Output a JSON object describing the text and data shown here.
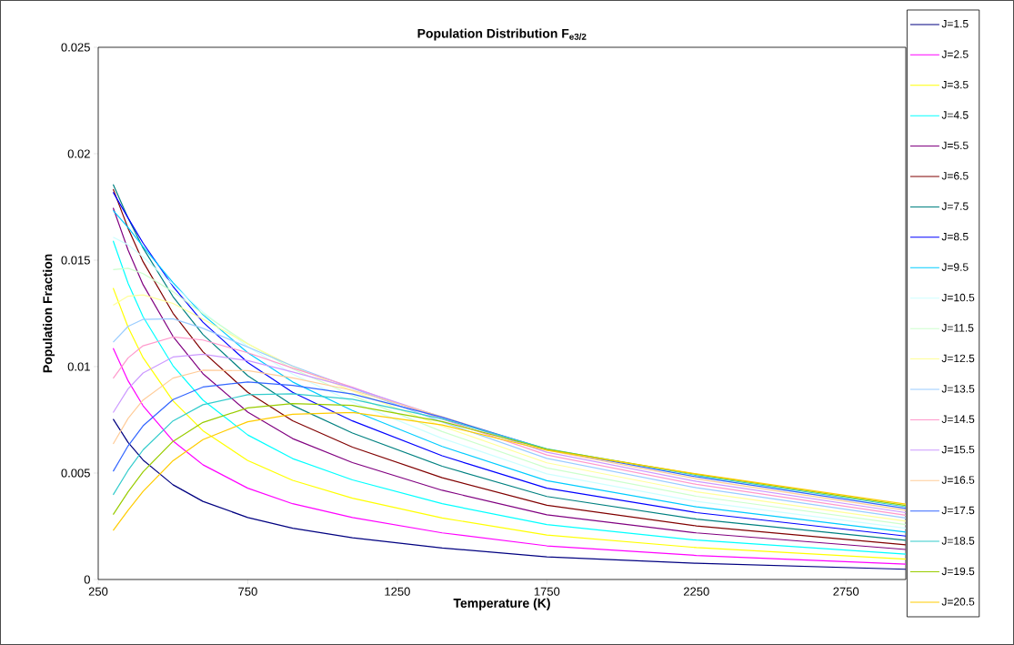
{
  "chart_data": {
    "type": "line",
    "title": "Population Distribution F$_{e3/2}$",
    "xlabel": "Temperature (K)",
    "ylabel": "Population Fraction",
    "x": [
      300,
      350,
      400,
      500,
      600,
      750,
      900,
      1100,
      1400,
      1750,
      2250,
      2950
    ],
    "xlim": [
      250,
      2950
    ],
    "xticks": [
      250,
      750,
      1250,
      1750,
      2250,
      2750
    ],
    "ylim": [
      0,
      0.025
    ],
    "yticks": [
      0,
      0.005,
      0.01,
      0.015,
      0.02,
      0.025
    ],
    "grid": false,
    "legend": "right",
    "line_style": "solid",
    "series": [
      {
        "name": "J=1.5",
        "color": "#000080",
        "values": [
          0.00754,
          0.00644,
          0.00561,
          0.00445,
          0.00367,
          0.00291,
          0.00241,
          0.00196,
          0.00148,
          0.00106,
          0.00076,
          0.00048
        ]
      },
      {
        "name": "J=2.5",
        "color": "#ff00ff",
        "values": [
          0.01087,
          0.00933,
          0.00816,
          0.00651,
          0.00539,
          0.00429,
          0.00356,
          0.00291,
          0.00219,
          0.00158,
          0.00113,
          0.00072
        ]
      },
      {
        "name": "J=3.5",
        "color": "#ffff00",
        "values": [
          0.01369,
          0.01185,
          0.01042,
          0.00839,
          0.00699,
          0.00559,
          0.00466,
          0.00382,
          0.00289,
          0.00209,
          0.0015,
          0.00096
        ]
      },
      {
        "name": "J=4.5",
        "color": "#00ffff",
        "values": [
          0.01591,
          0.01391,
          0.01234,
          0.01004,
          0.00843,
          0.00679,
          0.00568,
          0.00468,
          0.00356,
          0.00258,
          0.00185,
          0.00119
        ]
      },
      {
        "name": "J=5.5",
        "color": "#800080",
        "values": [
          0.01746,
          0.01547,
          0.01385,
          0.01142,
          0.00967,
          0.00786,
          0.00662,
          0.00549,
          0.00419,
          0.00304,
          0.00219,
          0.00141
        ]
      },
      {
        "name": "J=6.5",
        "color": "#800000",
        "values": [
          0.01834,
          0.01649,
          0.01493,
          0.01251,
          0.0107,
          0.00879,
          0.00746,
          0.00622,
          0.00478,
          0.00349,
          0.00252,
          0.00163
        ]
      },
      {
        "name": "J=7.5",
        "color": "#008080",
        "values": [
          0.01856,
          0.01698,
          0.01557,
          0.01329,
          0.01151,
          0.00957,
          0.00818,
          0.00688,
          0.00532,
          0.0039,
          0.00284,
          0.00184
        ]
      },
      {
        "name": "J=8.5",
        "color": "#0000ff",
        "values": [
          0.01819,
          0.01698,
          0.0158,
          0.01377,
          0.01209,
          0.01019,
          0.00879,
          0.00745,
          0.00581,
          0.00429,
          0.00314,
          0.00204
        ]
      },
      {
        "name": "J=9.5",
        "color": "#00ccff",
        "values": [
          0.01733,
          0.01653,
          0.01564,
          0.01395,
          0.01244,
          0.01065,
          0.00928,
          0.00794,
          0.00625,
          0.00464,
          0.00341,
          0.00223
        ]
      },
      {
        "name": "J=10.5",
        "color": "#ccffff",
        "values": [
          0.01608,
          0.01572,
          0.01515,
          0.01385,
          0.01257,
          0.01094,
          0.00965,
          0.00834,
          0.00663,
          0.00496,
          0.00367,
          0.00241
        ]
      },
      {
        "name": "J=11.5",
        "color": "#ccffcc",
        "values": [
          0.01456,
          0.01462,
          0.01437,
          0.01352,
          0.01249,
          0.01108,
          0.00989,
          0.00864,
          0.00695,
          0.00524,
          0.00391,
          0.00258
        ]
      },
      {
        "name": "J=12.5",
        "color": "#ffff99",
        "values": [
          0.01288,
          0.01331,
          0.01337,
          0.01297,
          0.01223,
          0.01107,
          0.01001,
          0.00886,
          0.0072,
          0.00548,
          0.00412,
          0.00274
        ]
      },
      {
        "name": "J=13.5",
        "color": "#99ccff",
        "values": [
          0.01115,
          0.01189,
          0.01222,
          0.01225,
          0.0118,
          0.01092,
          0.01003,
          0.00899,
          0.0074,
          0.00569,
          0.00431,
          0.00289
        ]
      },
      {
        "name": "J=14.5",
        "color": "#ff99cc",
        "values": [
          0.00945,
          0.01041,
          0.01098,
          0.01139,
          0.01125,
          0.01065,
          0.00993,
          0.00904,
          0.00754,
          0.00585,
          0.00447,
          0.00302
        ]
      },
      {
        "name": "J=15.5",
        "color": "#cc99ff",
        "values": [
          0.00784,
          0.00896,
          0.0097,
          0.01045,
          0.01058,
          0.01028,
          0.00975,
          0.009,
          0.00762,
          0.00598,
          0.00461,
          0.00314
        ]
      },
      {
        "name": "J=16.5",
        "color": "#ffcc99",
        "values": [
          0.00637,
          0.00757,
          0.00843,
          0.00946,
          0.00983,
          0.00981,
          0.00947,
          0.00889,
          0.00765,
          0.00607,
          0.00473,
          0.00325
        ]
      },
      {
        "name": "J=17.5",
        "color": "#3366ff",
        "values": [
          0.00508,
          0.00628,
          0.00722,
          0.00845,
          0.00904,
          0.00928,
          0.00912,
          0.00871,
          0.00762,
          0.00612,
          0.00482,
          0.00334
        ]
      },
      {
        "name": "J=18.5",
        "color": "#33cccc",
        "values": [
          0.00398,
          0.00513,
          0.00609,
          0.00745,
          0.00821,
          0.00868,
          0.00872,
          0.00847,
          0.00755,
          0.00614,
          0.00489,
          0.00342
        ]
      },
      {
        "name": "J=19.5",
        "color": "#99cc00",
        "values": [
          0.00305,
          0.00412,
          0.00506,
          0.00649,
          0.00738,
          0.00806,
          0.00826,
          0.00818,
          0.00742,
          0.00612,
          0.00494,
          0.00348
        ]
      },
      {
        "name": "J=20.5",
        "color": "#ffcc00",
        "values": [
          0.0023,
          0.00325,
          0.00414,
          0.00558,
          0.00657,
          0.00741,
          0.00776,
          0.00785,
          0.00726,
          0.00607,
          0.00496,
          0.00354
        ]
      }
    ]
  }
}
